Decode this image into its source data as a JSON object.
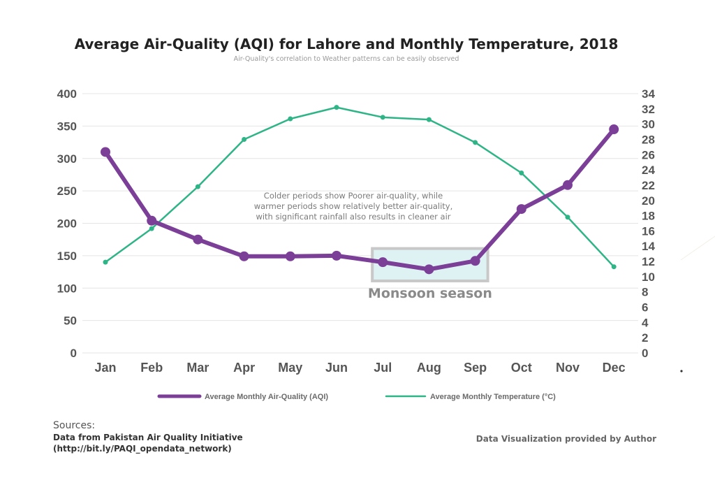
{
  "chart_data": {
    "type": "line",
    "title": "Average Air-Quality (AQI) for Lahore and Monthly Temperature, 2018",
    "subtitle": "Air-Quality's correlation to Weather patterns can be easily observed",
    "categories": [
      "Jan",
      "Feb",
      "Mar",
      "Apr",
      "May",
      "Jun",
      "Jul",
      "Aug",
      "Sep",
      "Oct",
      "Nov",
      "Dec"
    ],
    "series": [
      {
        "name": "Average Monthly Air-Quality (AQI)",
        "axis": "left",
        "color": "#7b3f98",
        "values": [
          310,
          204,
          175,
          149,
          149,
          150,
          140,
          129,
          142,
          222,
          259,
          345
        ]
      },
      {
        "name": "Average Monthly Temperature (°C)",
        "axis": "right",
        "color": "#2fb487",
        "values": [
          11.9,
          16.3,
          21.8,
          28.0,
          30.7,
          32.2,
          30.9,
          30.6,
          27.6,
          23.6,
          17.8,
          11.3
        ]
      }
    ],
    "y_left": {
      "ticks": [
        0,
        50,
        100,
        150,
        200,
        250,
        300,
        350,
        400
      ],
      "ylim": [
        0,
        400
      ]
    },
    "y_right": {
      "ticks": [
        0,
        2,
        4,
        6,
        8,
        10,
        12,
        14,
        16,
        18,
        20,
        22,
        24,
        26,
        28,
        30,
        32,
        34
      ],
      "ylim": [
        0,
        34
      ]
    },
    "grid": true,
    "legend_position": "bottom",
    "annotation": [
      "Colder periods show Poorer air-quality, while",
      "warmer periods show relatively better air-quality,",
      "with significant rainfall also results in cleaner air"
    ],
    "highlight": {
      "label": "Monsoon season",
      "x_start": "Jul",
      "x_end": "Sep",
      "y_range": [
        110,
        160
      ],
      "fill": "#dff2f3",
      "stroke": "#c8c8c8"
    }
  },
  "footer": {
    "sources_label": "Sources:",
    "sources_line1": "Data from Pakistan Air Quality Initiative",
    "sources_line2": "(http://bit.ly/PAQI_opendata_network)",
    "credit": "Data Visualization provided by Author"
  }
}
